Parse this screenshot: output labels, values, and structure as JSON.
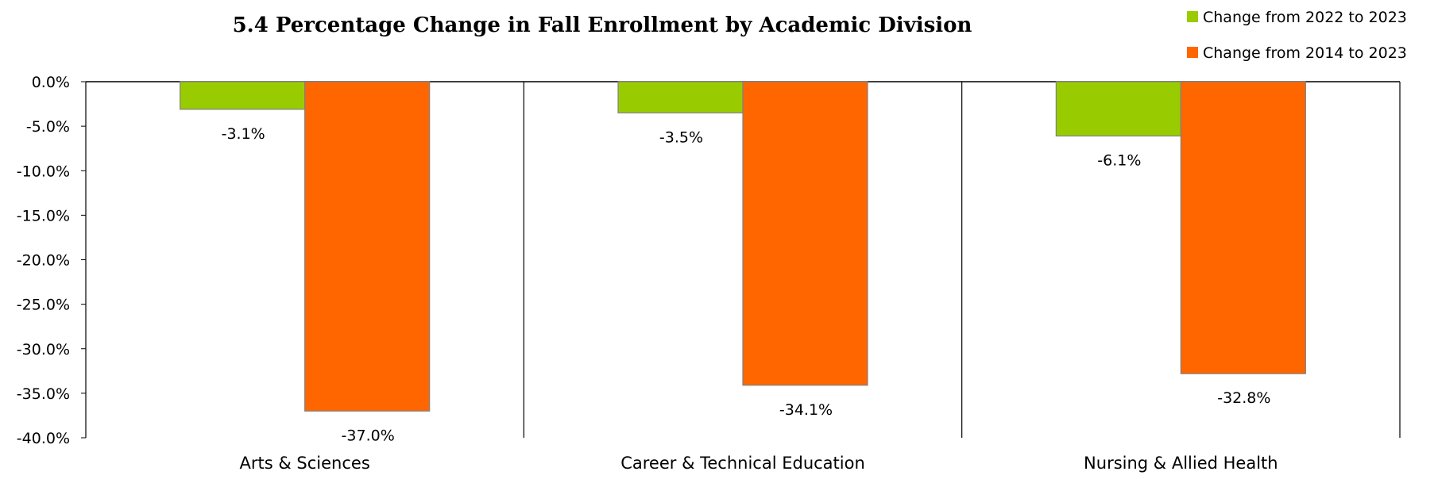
{
  "chart_data": {
    "type": "bar",
    "title": "5.4   Percentage Change in Fall Enrollment by Academic Division",
    "categories": [
      "Arts & Sciences",
      "Career & Technical Education",
      "Nursing & Allied Health"
    ],
    "series": [
      {
        "name": "Change from 2022 to 2023",
        "values": [
          -3.1,
          -3.5,
          -6.1
        ],
        "color": "#99CC00"
      },
      {
        "name": "Change from 2014 to 2023",
        "values": [
          -37.0,
          -34.1,
          -32.8
        ],
        "color": "#FF6600"
      }
    ],
    "data_labels": [
      [
        "-3.1%",
        "-3.5%",
        "-6.1%"
      ],
      [
        "-37.0%",
        "-34.1%",
        "-32.8%"
      ]
    ],
    "y_ticks": [
      0,
      -5,
      -10,
      -15,
      -20,
      -25,
      -30,
      -35,
      -40
    ],
    "y_tick_labels": [
      "0.0%",
      "-5.0%",
      "-10.0%",
      "-15.0%",
      "-20.0%",
      "-25.0%",
      "-30.0%",
      "-35.0%",
      "-40.0%"
    ],
    "ylim": [
      -40,
      0
    ],
    "xlabel": "",
    "ylabel": "",
    "grid": false,
    "legend_position": "top-right",
    "colors": {
      "bar_border": "#808080",
      "axis": "#000000"
    }
  }
}
